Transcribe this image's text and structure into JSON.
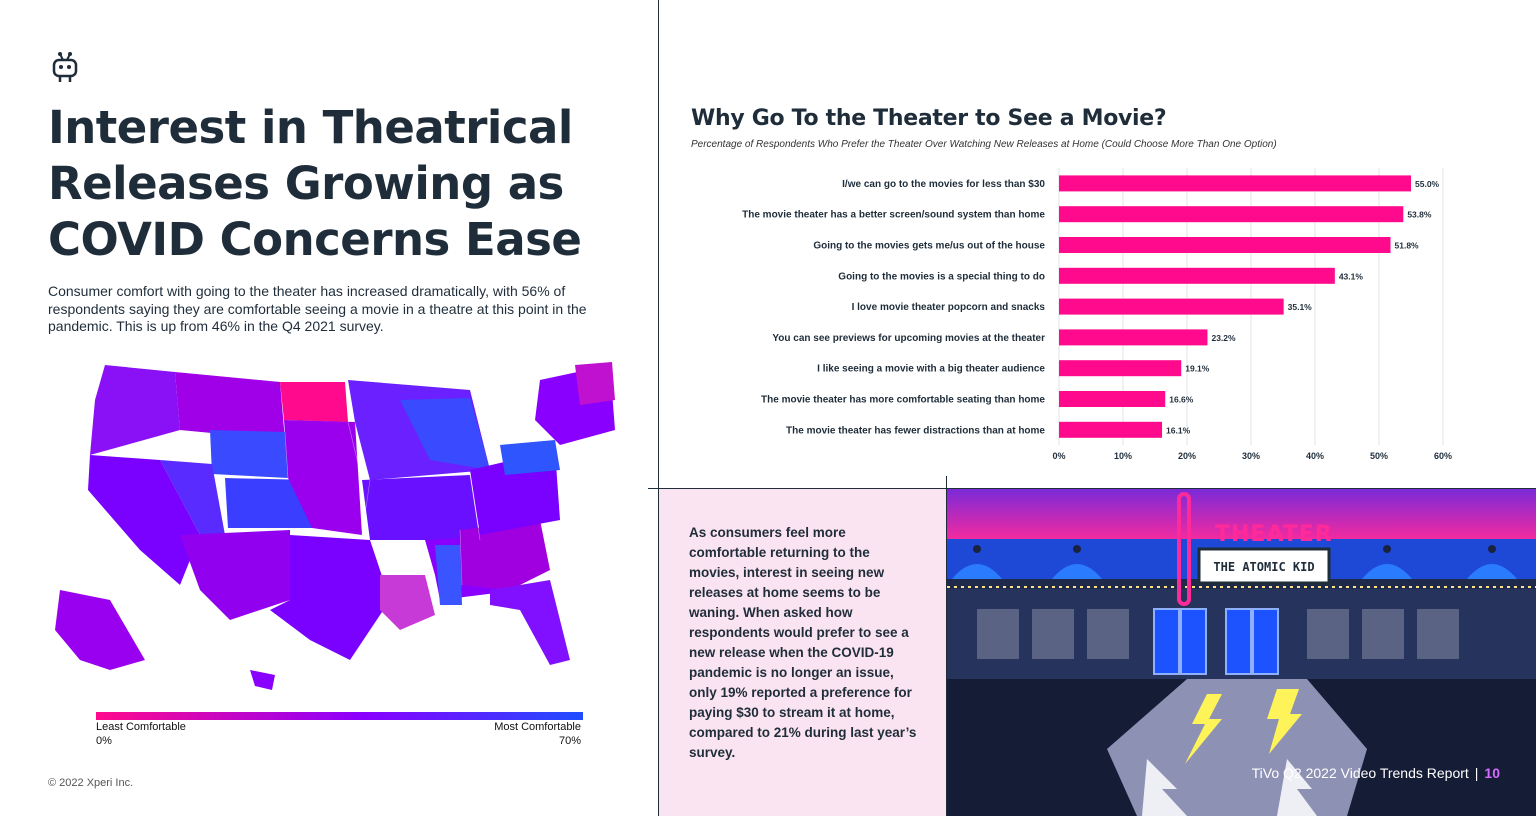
{
  "headline": "Interest in Theatrical Releases Growing as COVID Concerns Ease",
  "intro": "Consumer comfort with going to the theater has increased dramatically, with 56% of respondents saying they are comfortable seeing a movie in a theatre at this point in the pandemic. This is up from 46% in the Q4 2021 survey.",
  "legend": {
    "min_label": "Least Comfortable",
    "min_value": "0%",
    "max_label": "Most Comfortable",
    "max_value": "70%",
    "min_color": "#ff0a8c",
    "max_color": "#1f4dff"
  },
  "copyright": "© 2022 Xperi Inc.",
  "chart_data": {
    "type": "bar",
    "orientation": "horizontal",
    "title": "Why Go To the Theater to See a Movie?",
    "subtitle": "Percentage of Respondents Who Prefer the Theater Over Watching New Releases at Home (Could Choose More Than One Option)",
    "categories": [
      "I/we can go to the movies for less than $30",
      "The movie theater has a better screen/sound system than home",
      "Going to the movies gets me/us out of the house",
      "Going to the movies is a special thing to do",
      "I love movie theater popcorn and snacks",
      "You can see previews for upcoming movies at the theater",
      "I like seeing a movie with a big theater audience",
      "The movie theater has more comfortable seating than home",
      "The movie theater has fewer distractions than at home"
    ],
    "values": [
      55.0,
      53.8,
      51.8,
      43.1,
      35.1,
      23.2,
      19.1,
      16.6,
      16.1
    ],
    "value_labels": [
      "55.0%",
      "53.8%",
      "51.8%",
      "43.1%",
      "35.1%",
      "23.2%",
      "19.1%",
      "16.6%",
      "16.1%"
    ],
    "xlim": [
      0,
      60
    ],
    "ticks": [
      "0%",
      "10%",
      "20%",
      "30%",
      "40%",
      "50%",
      "60%"
    ],
    "bar_color": "#ff0a8c",
    "grid": true
  },
  "quote": "As consumers feel more comfortable returning to the movies, interest in seeing new releases at home seems to be waning. When asked how respondents would prefer to see a new release when the COVID-19 pandemic is no longer an issue, only 19% reported a preference for paying $30 to stream it at home, compared to 21% during last year’s survey.",
  "theater": {
    "sign": "THEATER",
    "marquee": "THE ATOMIC KID"
  },
  "footer": {
    "report": "TiVo Q2 2022 Video Trends Report",
    "separator": "|",
    "page": "10"
  }
}
